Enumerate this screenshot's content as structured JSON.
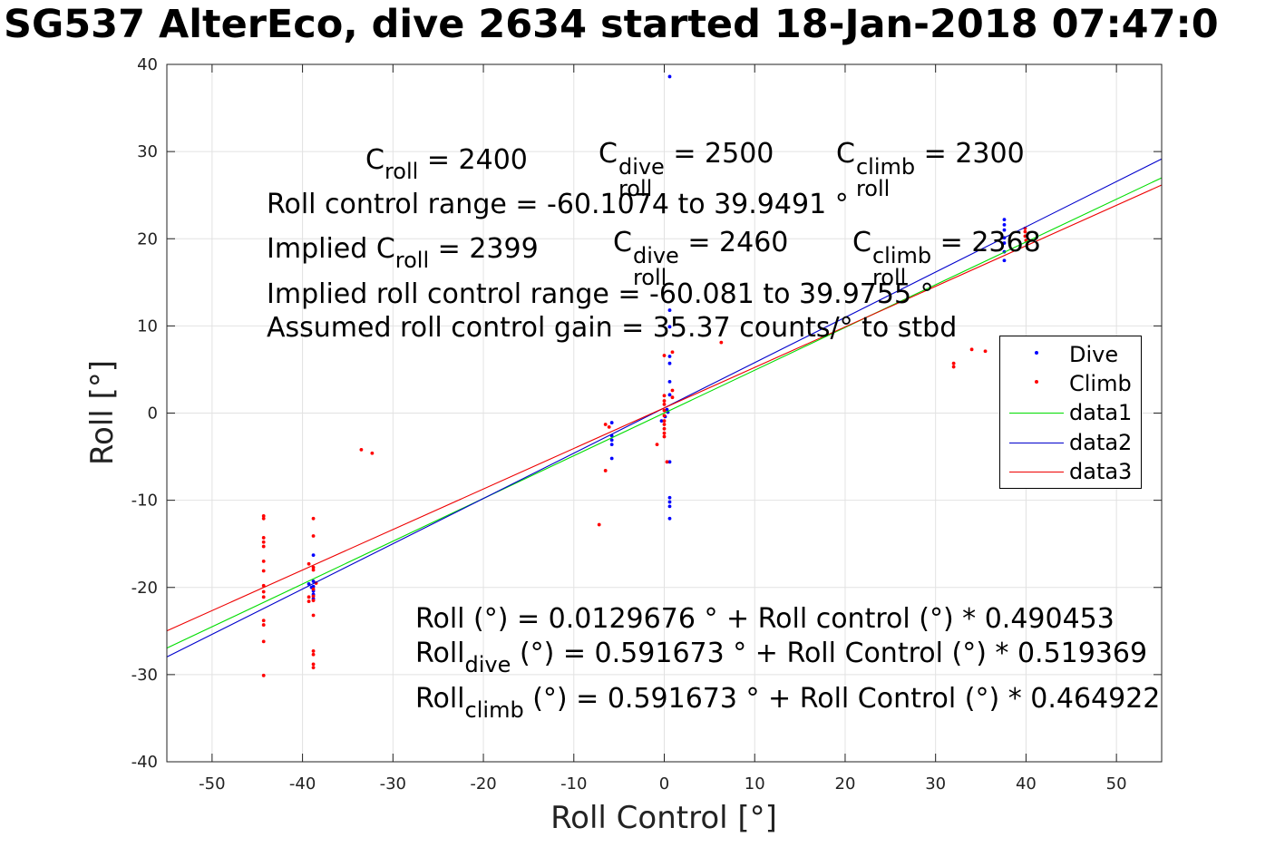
{
  "title": "SG537 AlterEco, dive 2634 started 18-Jan-2018 07:47:0",
  "chart_data": {
    "type": "scatter",
    "xlabel": "Roll Control [°]",
    "ylabel": "Roll [°]",
    "xlim": [
      -55,
      55
    ],
    "ylim": [
      -40,
      40
    ],
    "xticks": [
      -50,
      -40,
      -30,
      -20,
      -10,
      0,
      10,
      20,
      30,
      40,
      50
    ],
    "yticks": [
      -40,
      -30,
      -20,
      -10,
      0,
      10,
      20,
      30,
      40
    ],
    "grid": true,
    "legend_position": "right",
    "series": [
      {
        "name": "Dive",
        "kind": "points",
        "color": "#0000ff",
        "points": [
          [
            0.6,
            38.6
          ],
          [
            0.6,
            11.8
          ],
          [
            0.6,
            9.9
          ],
          [
            0.6,
            6.5
          ],
          [
            0.6,
            5.7
          ],
          [
            0.6,
            3.6
          ],
          [
            0.6,
            2.1
          ],
          [
            0.6,
            -5.6
          ],
          [
            0.6,
            -9.7
          ],
          [
            0.6,
            -10.2
          ],
          [
            0.6,
            -10.7
          ],
          [
            0.6,
            -12.1
          ],
          [
            0.3,
            0.4
          ],
          [
            0.1,
            -0.4
          ],
          [
            -0.3,
            -0.9
          ],
          [
            0.4,
            0.1
          ],
          [
            -5.8,
            -1.1
          ],
          [
            -5.8,
            -2.6
          ],
          [
            -5.8,
            -3.1
          ],
          [
            -5.8,
            -3.6
          ],
          [
            -5.8,
            -5.2
          ],
          [
            -38.8,
            -16.3
          ],
          [
            -38.8,
            -19.3
          ],
          [
            -38.8,
            -19.9
          ],
          [
            -38.8,
            -20.4
          ],
          [
            -38.8,
            -20.8
          ],
          [
            -38.8,
            -21.3
          ],
          [
            -39.3,
            -19.6
          ],
          [
            -39.0,
            -20.0
          ],
          [
            37.6,
            22.2
          ],
          [
            37.6,
            21.6
          ],
          [
            37.6,
            21.0
          ],
          [
            37.6,
            20.1
          ],
          [
            37.6,
            19.5
          ],
          [
            37.6,
            18.5
          ],
          [
            37.6,
            17.5
          ]
        ]
      },
      {
        "name": "Climb",
        "kind": "points",
        "color": "#ff0000",
        "points": [
          [
            -44.3,
            -11.8
          ],
          [
            -44.3,
            -12.1
          ],
          [
            -44.3,
            -14.3
          ],
          [
            -44.3,
            -14.8
          ],
          [
            -44.3,
            -15.3
          ],
          [
            -44.3,
            -17.0
          ],
          [
            -44.3,
            -18.1
          ],
          [
            -44.3,
            -19.8
          ],
          [
            -44.3,
            -20.5
          ],
          [
            -44.3,
            -21.1
          ],
          [
            -44.3,
            -23.8
          ],
          [
            -44.3,
            -24.3
          ],
          [
            -44.3,
            -26.2
          ],
          [
            -44.3,
            -30.1
          ],
          [
            -38.8,
            -12.1
          ],
          [
            -38.8,
            -14.1
          ],
          [
            -38.8,
            -17.7
          ],
          [
            -38.8,
            -18.0
          ],
          [
            -38.8,
            -20.2
          ],
          [
            -38.8,
            -21.0
          ],
          [
            -38.8,
            -21.5
          ],
          [
            -38.8,
            -23.2
          ],
          [
            -38.8,
            -27.3
          ],
          [
            -38.8,
            -27.7
          ],
          [
            -38.8,
            -28.8
          ],
          [
            -38.8,
            -29.2
          ],
          [
            -39.3,
            -17.3
          ],
          [
            -39.3,
            -21.1
          ],
          [
            -39.3,
            -21.6
          ],
          [
            -38.5,
            -19.5
          ],
          [
            -33.5,
            -4.2
          ],
          [
            -32.3,
            -4.6
          ],
          [
            -7.2,
            -12.8
          ],
          [
            -6.5,
            -6.6
          ],
          [
            -6.5,
            -1.3
          ],
          [
            -6.1,
            -1.6
          ],
          [
            -0.8,
            -3.6
          ],
          [
            0.0,
            6.6
          ],
          [
            0.0,
            2.0
          ],
          [
            0.0,
            1.4
          ],
          [
            0.0,
            1.0
          ],
          [
            0.0,
            0.3
          ],
          [
            0.0,
            -0.3
          ],
          [
            0.0,
            -0.9
          ],
          [
            0.0,
            -1.3
          ],
          [
            0.0,
            -1.8
          ],
          [
            0.0,
            -2.3
          ],
          [
            0.0,
            -2.7
          ],
          [
            0.3,
            -5.6
          ],
          [
            0.9,
            2.6
          ],
          [
            0.9,
            1.8
          ],
          [
            0.9,
            7.0
          ],
          [
            6.3,
            8.1
          ],
          [
            32.0,
            5.7
          ],
          [
            32.0,
            5.3
          ],
          [
            34.0,
            7.3
          ],
          [
            35.5,
            7.1
          ],
          [
            39.9,
            21.2
          ],
          [
            39.9,
            20.8
          ],
          [
            39.9,
            20.3
          ],
          [
            40.0,
            19.8
          ]
        ]
      },
      {
        "name": "data1",
        "kind": "line",
        "color": "#00dd00",
        "intercept": 0.0129676,
        "slope": 0.490453
      },
      {
        "name": "data2",
        "kind": "line",
        "color": "#0000cc",
        "intercept": 0.591673,
        "slope": 0.519369
      },
      {
        "name": "data3",
        "kind": "line",
        "color": "#ee0000",
        "intercept": 0.591673,
        "slope": 0.464922
      }
    ]
  },
  "annotations": {
    "c_roll": "C",
    "c_roll_sub": "roll",
    "c_roll_val": " = 2400",
    "c_dive": "C",
    "c_dive_sup": "dive",
    "c_dive_sub": "roll",
    "c_dive_val": " = 2500",
    "c_climb": "C",
    "c_climb_sup": "climb",
    "c_climb_sub": "roll",
    "c_climb_val": " = 2300",
    "range_line": "Roll control range = -60.1074 to 39.9491 °",
    "implied_pre": "Implied C",
    "implied_sub": "roll",
    "implied_val": " = 2399",
    "implied_dive": "C",
    "implied_dive_sup": "dive",
    "implied_dive_sub": "roll",
    "implied_dive_val": " = 2460",
    "implied_climb": "C",
    "implied_climb_sup": "climb",
    "implied_climb_sub": "roll",
    "implied_climb_val": " = 2368",
    "implied_range": "Implied roll control range = -60.081 to 39.9755 °",
    "gain": "Assumed roll control gain = 35.37 counts/° to stbd",
    "fit_all": "Roll (°) = 0.0129676 ° + Roll control (°) * 0.490453",
    "fit_dive_pre": "Roll",
    "fit_dive_sub": "dive",
    "fit_dive_rest": " (°) = 0.591673 ° + Roll Control (°) * 0.519369",
    "fit_climb_pre": "Roll",
    "fit_climb_sub": "climb",
    "fit_climb_rest": " (°) = 0.591673 ° + Roll Control (°) * 0.464922"
  }
}
